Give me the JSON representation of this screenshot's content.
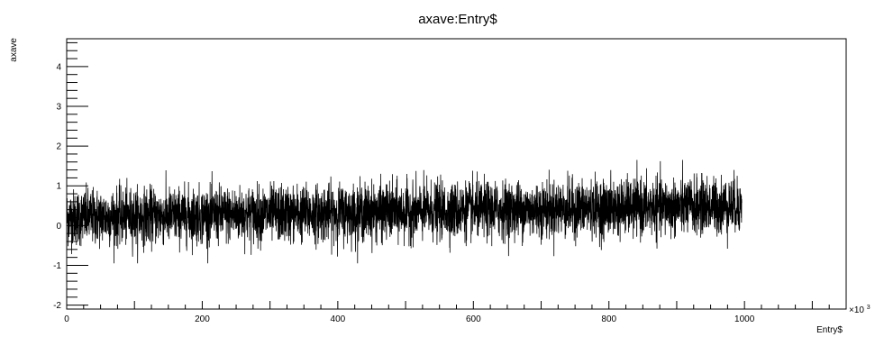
{
  "chart_data": {
    "type": "line",
    "title": "axave:Entry$",
    "xlabel": "Entry$",
    "ylabel": "axave",
    "x_multiplier_label": "×10",
    "x_multiplier_exponent": "3",
    "xlim": [
      0,
      1150
    ],
    "ylim": [
      -2.1,
      4.7
    ],
    "x_ticks": [
      0,
      200,
      400,
      600,
      800,
      1000
    ],
    "x_tick_labels": [
      "0",
      "200",
      "400",
      "600",
      "800",
      "1000"
    ],
    "y_ticks": [
      -2,
      -1,
      0,
      1,
      2,
      3,
      4
    ],
    "y_tick_labels": [
      "-2",
      "-1",
      "0",
      "1",
      "2",
      "3",
      "4"
    ],
    "grid": false,
    "legend": "none",
    "line_color": "#000000",
    "series": [
      {
        "x_range": [
          0,
          996
        ],
        "mean_start": 0.2,
        "mean_end": 0.5,
        "spread": 0.35,
        "max": 1.65,
        "min": -0.95
      }
    ]
  }
}
